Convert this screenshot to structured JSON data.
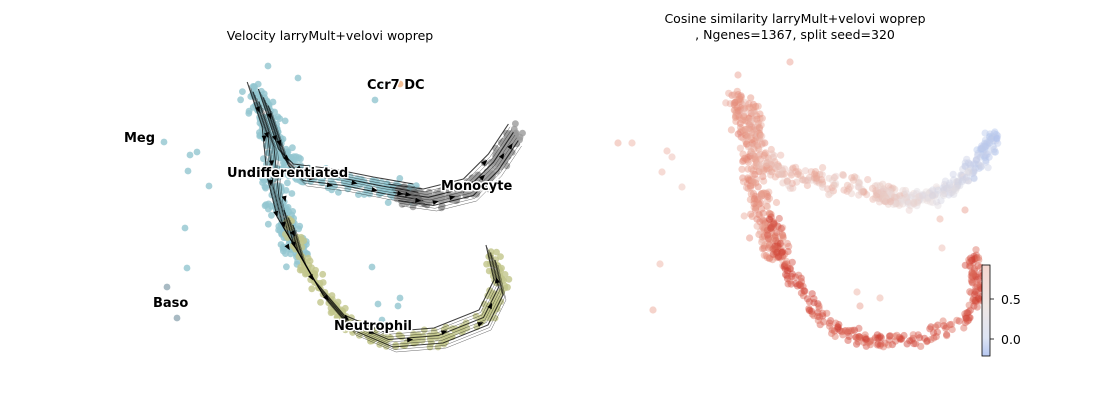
{
  "chart_data": [
    {
      "type": "scatter",
      "title": "Velocity larryMult+velovi woprep",
      "subtitle": "",
      "xlabel": "",
      "ylabel": "",
      "legend": "on data",
      "grid": false,
      "annotations": [
        "Ccr7 DC",
        "Meg",
        "Undifferentiated",
        "Monocyte",
        "Baso",
        "Neutrophil"
      ],
      "series": [
        {
          "name": "Undifferentiated",
          "color": "#92c6d0"
        },
        {
          "name": "Monocyte",
          "color": "#9a9a9a"
        },
        {
          "name": "Neutrophil",
          "color": "#c2c68b"
        },
        {
          "name": "Baso",
          "color": "#9fb3bd"
        },
        {
          "name": "Ccr7 DC",
          "color": "#f2b98c"
        },
        {
          "name": "Meg",
          "color": "#92c6d0"
        }
      ],
      "colors": {
        "undifferentiated": "#92c6d0",
        "monocyte": "#9a9a9a",
        "neutrophil": "#c2c68b",
        "baso": "#9fb3bd",
        "ccr7": "#f2b98c",
        "stream": "#000000"
      }
    },
    {
      "type": "scatter",
      "title": "Cosine similarity larryMult+velovi woprep\n, Ngenes=1367, split seed=320",
      "title_line1": "Cosine similarity larryMult+velovi woprep",
      "title_line2": ", Ngenes=1367, split seed=320",
      "xlabel": "",
      "ylabel": "",
      "grid": false,
      "colorbar": {
        "ticks": [
          "0.5",
          "0.0"
        ],
        "tick_values": [
          0.5,
          0.0
        ],
        "range": [
          -0.25,
          1.0
        ],
        "colormap": "coolwarm"
      },
      "colors": {
        "high": "#c8281e",
        "mid": "#e8c8be",
        "low": "#a8c0f0"
      }
    }
  ]
}
